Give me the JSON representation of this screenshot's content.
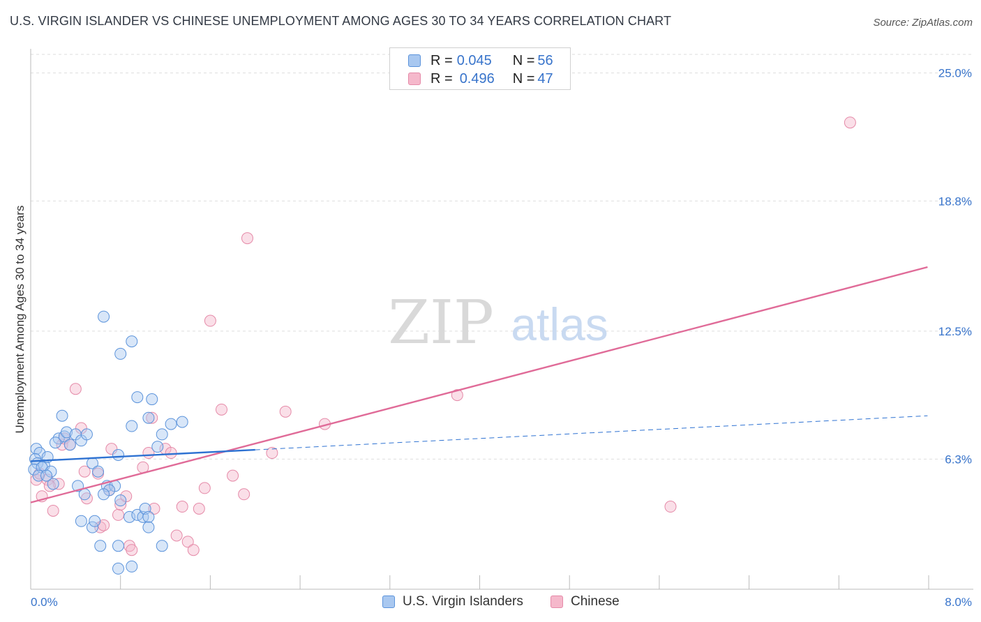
{
  "title": "U.S. VIRGIN ISLANDER VS CHINESE UNEMPLOYMENT AMONG AGES 30 TO 34 YEARS CORRELATION CHART",
  "source": "Source: ZipAtlas.com",
  "watermark": {
    "zip": "ZIP",
    "atlas": "atlas"
  },
  "legend": {
    "rows": [
      {
        "r_label": "R = ",
        "r_value": "0.045",
        "n_label": "N = ",
        "n_value": "56"
      },
      {
        "r_label": "R = ",
        "r_value": "0.496",
        "n_label": "N = ",
        "n_value": "47"
      }
    ]
  },
  "colors": {
    "blue_fill": "#a9c8f0",
    "blue_stroke": "#5b93db",
    "blue_line": "#2e72d2",
    "pink_fill": "#f5b8cb",
    "pink_stroke": "#e58aa8",
    "pink_line": "#e06b98",
    "tick_label": "#3874cb",
    "grid": "#dddddd"
  },
  "chart_data": {
    "type": "scatter",
    "title": "U.S. VIRGIN ISLANDER VS CHINESE UNEMPLOYMENT AMONG AGES 30 TO 34 YEARS CORRELATION CHART",
    "xlabel": "",
    "ylabel": "Unemployment Among Ages 30 to 34 years",
    "xlim": [
      0,
      8
    ],
    "ylim": [
      0,
      25.9
    ],
    "x_tick_labels": [
      "0.0%",
      "8.0%"
    ],
    "y_ticks": [
      6.3,
      12.5,
      18.8,
      25.0
    ],
    "y_tick_labels": [
      "6.3%",
      "12.5%",
      "18.8%",
      "25.0%"
    ],
    "series": [
      {
        "name": "U.S. Virgin Islanders",
        "r": 0.045,
        "n": 56,
        "trend": {
          "x0": 0.0,
          "y0": 6.2,
          "x1": 2.0,
          "y1": 6.75,
          "dashed_to_x": 7.99,
          "dashed_to_y": 8.4
        },
        "points": [
          [
            0.05,
            6.8
          ],
          [
            0.08,
            6.6
          ],
          [
            0.04,
            6.3
          ],
          [
            0.06,
            6.1
          ],
          [
            0.12,
            6.0
          ],
          [
            0.15,
            6.4
          ],
          [
            0.03,
            5.8
          ],
          [
            0.1,
            5.9
          ],
          [
            0.07,
            5.5
          ],
          [
            0.18,
            5.7
          ],
          [
            0.2,
            5.1
          ],
          [
            0.14,
            5.5
          ],
          [
            0.25,
            7.3
          ],
          [
            0.22,
            7.1
          ],
          [
            0.3,
            7.4
          ],
          [
            0.35,
            7.0
          ],
          [
            0.28,
            8.4
          ],
          [
            0.32,
            7.6
          ],
          [
            0.4,
            7.5
          ],
          [
            0.45,
            7.2
          ],
          [
            0.5,
            7.5
          ],
          [
            0.55,
            6.1
          ],
          [
            0.6,
            5.7
          ],
          [
            0.68,
            5.0
          ],
          [
            0.75,
            5.0
          ],
          [
            0.78,
            6.5
          ],
          [
            0.7,
            4.8
          ],
          [
            0.65,
            4.6
          ],
          [
            0.8,
            4.3
          ],
          [
            0.42,
            5.0
          ],
          [
            0.48,
            4.6
          ],
          [
            0.45,
            3.3
          ],
          [
            0.55,
            3.0
          ],
          [
            0.57,
            3.3
          ],
          [
            0.88,
            3.5
          ],
          [
            0.95,
            3.6
          ],
          [
            1.0,
            3.5
          ],
          [
            1.02,
            3.9
          ],
          [
            0.62,
            2.1
          ],
          [
            0.78,
            2.1
          ],
          [
            0.78,
            1.0
          ],
          [
            0.9,
            1.1
          ],
          [
            1.05,
            3.5
          ],
          [
            1.05,
            3.0
          ],
          [
            1.17,
            2.1
          ],
          [
            0.9,
            7.9
          ],
          [
            1.05,
            8.3
          ],
          [
            1.17,
            7.5
          ],
          [
            1.13,
            6.9
          ],
          [
            0.95,
            9.3
          ],
          [
            1.08,
            9.2
          ],
          [
            1.25,
            8.0
          ],
          [
            0.65,
            13.2
          ],
          [
            0.8,
            11.4
          ],
          [
            0.9,
            12.0
          ],
          [
            1.35,
            8.1
          ]
        ]
      },
      {
        "name": "Chinese",
        "r": 0.496,
        "n": 47,
        "trend": {
          "x0": 0.0,
          "y0": 4.2,
          "x1": 7.99,
          "y1": 15.6
        },
        "points": [
          [
            0.05,
            5.3
          ],
          [
            0.08,
            5.6
          ],
          [
            0.1,
            4.5
          ],
          [
            0.15,
            5.3
          ],
          [
            0.2,
            3.8
          ],
          [
            0.25,
            5.1
          ],
          [
            0.28,
            7.0
          ],
          [
            0.3,
            7.3
          ],
          [
            0.35,
            7.0
          ],
          [
            0.4,
            9.7
          ],
          [
            0.45,
            7.8
          ],
          [
            0.48,
            5.7
          ],
          [
            0.5,
            4.4
          ],
          [
            0.6,
            5.6
          ],
          [
            0.62,
            3.0
          ],
          [
            0.65,
            3.1
          ],
          [
            0.7,
            4.8
          ],
          [
            0.72,
            6.8
          ],
          [
            0.78,
            3.6
          ],
          [
            0.8,
            4.1
          ],
          [
            0.85,
            4.5
          ],
          [
            0.88,
            2.1
          ],
          [
            0.9,
            1.9
          ],
          [
            1.0,
            5.9
          ],
          [
            1.05,
            6.6
          ],
          [
            1.08,
            8.3
          ],
          [
            1.1,
            3.9
          ],
          [
            1.2,
            6.8
          ],
          [
            1.25,
            6.6
          ],
          [
            1.3,
            2.6
          ],
          [
            1.35,
            4.0
          ],
          [
            1.4,
            2.3
          ],
          [
            1.45,
            1.9
          ],
          [
            1.5,
            3.9
          ],
          [
            1.55,
            4.9
          ],
          [
            1.6,
            13.0
          ],
          [
            1.7,
            8.7
          ],
          [
            1.8,
            5.5
          ],
          [
            1.9,
            4.6
          ],
          [
            1.93,
            17.0
          ],
          [
            2.15,
            6.6
          ],
          [
            2.27,
            8.6
          ],
          [
            2.62,
            8.0
          ],
          [
            3.8,
            9.4
          ],
          [
            5.7,
            4.0
          ],
          [
            7.3,
            22.6
          ],
          [
            0.17,
            5.0
          ]
        ]
      }
    ]
  }
}
